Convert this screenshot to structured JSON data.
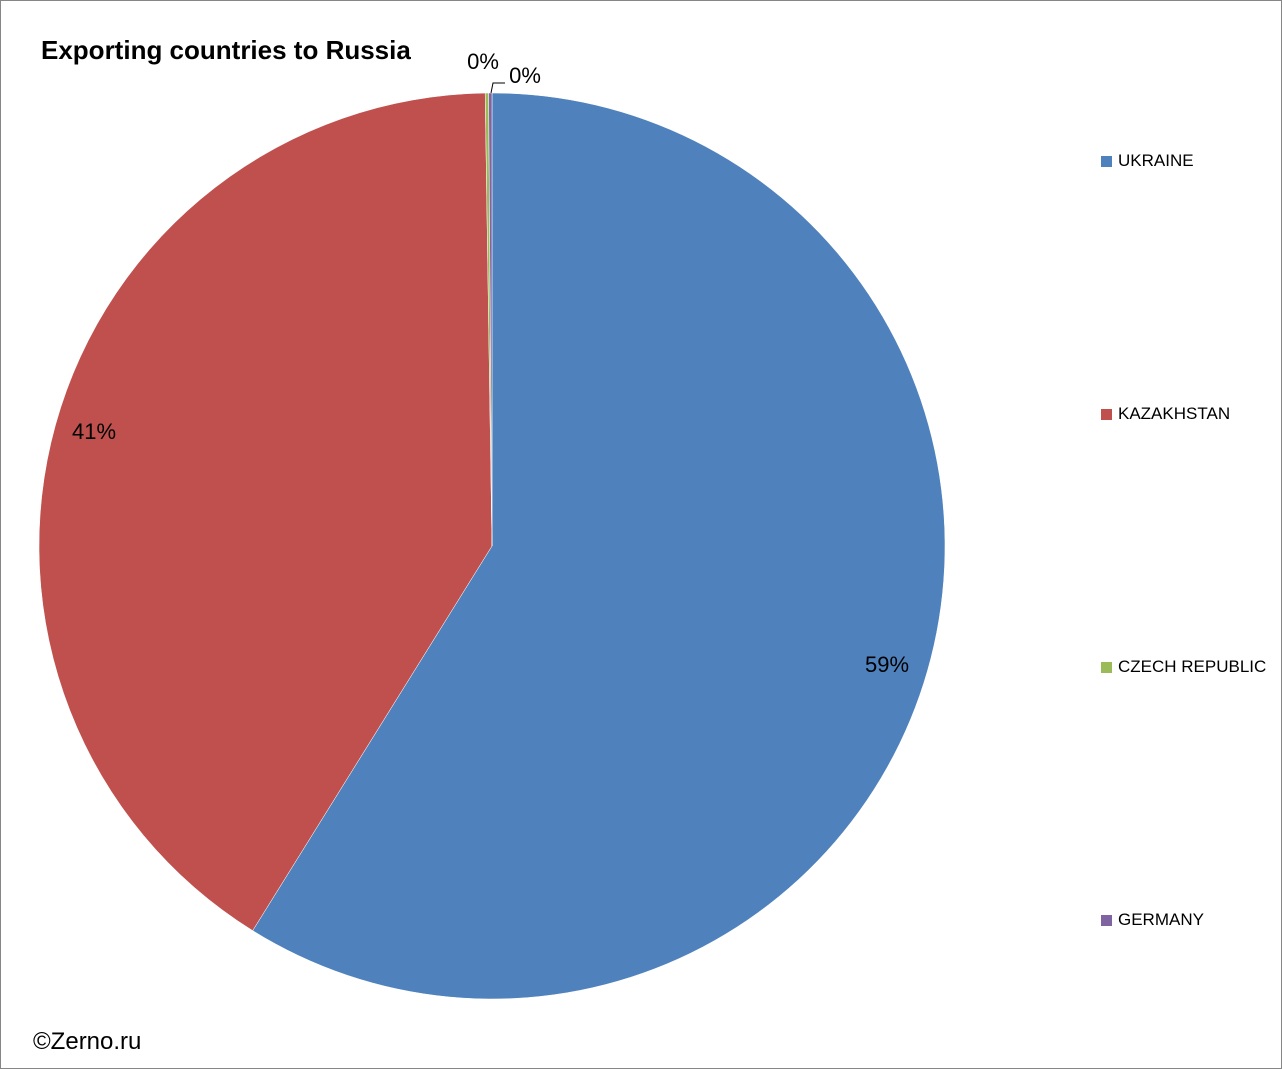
{
  "title": "Exporting countries to Russia",
  "credit": "©Zerno.ru",
  "chart_data": {
    "type": "pie",
    "title": "Exporting countries to Russia",
    "slices": [
      {
        "name": "UKRAINE",
        "value": 59,
        "label": "59%",
        "color": "#4F81BD"
      },
      {
        "name": "KAZAKHSTAN",
        "value": 41,
        "label": "41%",
        "color": "#C0504D"
      },
      {
        "name": "CZECH REPUBLIC",
        "value": 0,
        "label": "0%",
        "color": "#9BBB59"
      },
      {
        "name": "GERMANY",
        "value": 0,
        "label": "0%",
        "color": "#8064A2"
      }
    ],
    "legend_position": "right"
  }
}
